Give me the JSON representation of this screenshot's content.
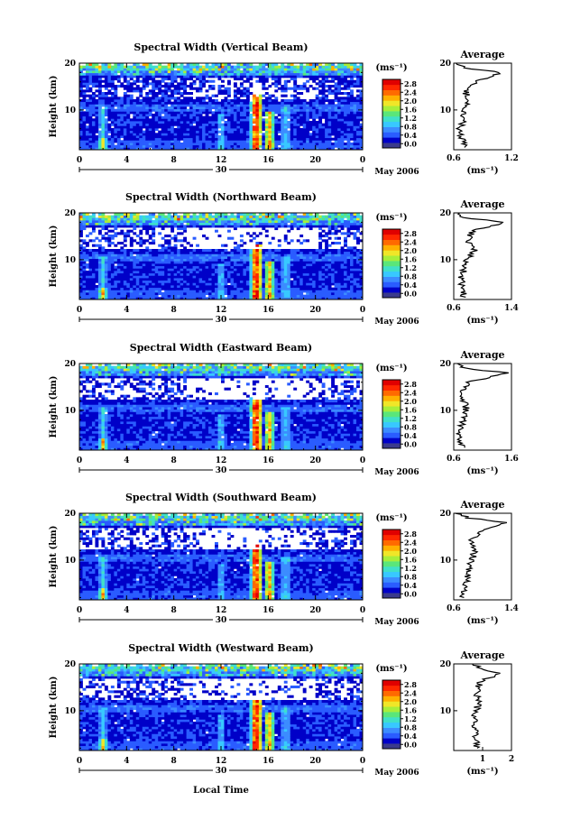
{
  "figure": {
    "xlabel": "Local Time",
    "month_label": "May 2006",
    "day_label": "30",
    "avg_title": "Average"
  },
  "colorscale": {
    "unit_label": "(ms⁻¹)",
    "ticks": [
      "0.0",
      "0.4",
      "0.8",
      "1.2",
      "1.6",
      "2.0",
      "2.4",
      "2.8"
    ],
    "colors": [
      "#3a3a8c",
      "#0000c8",
      "#2a5cff",
      "#3c8cff",
      "#38c8ff",
      "#40e0c8",
      "#5ae67a",
      "#a8ee3a",
      "#f0e628",
      "#ffb000",
      "#ff6a00",
      "#ff2800",
      "#e00000"
    ]
  },
  "chart_data": [
    {
      "type": "heatmap",
      "title": "Spectral Width (Vertical Beam)",
      "ylabel": "Height (km)",
      "xlim": [
        0,
        24
      ],
      "ylim": [
        1.5,
        20
      ],
      "xticks": [
        "0",
        "4",
        "8",
        "12",
        "16",
        "20",
        "0"
      ],
      "yticks": [
        "10",
        "20"
      ],
      "colorbar_range": [
        0.0,
        2.8
      ],
      "average_profile": {
        "title": "Average",
        "xlabel": "(ms⁻¹)",
        "xlim": [
          0.6,
          1.2
        ],
        "xticks": [
          "0.6",
          "1.2"
        ],
        "height": [
          2,
          4,
          6,
          8,
          10,
          12,
          14,
          16,
          17,
          18,
          19,
          20
        ],
        "value": [
          0.72,
          0.68,
          0.66,
          0.7,
          0.69,
          0.75,
          0.72,
          0.82,
          0.95,
          1.1,
          0.72,
          0.62
        ]
      }
    },
    {
      "type": "heatmap",
      "title": "Spectral Width (Northward Beam)",
      "ylabel": "Height (km)",
      "xlim": [
        0,
        24
      ],
      "ylim": [
        1.5,
        20
      ],
      "xticks": [
        "0",
        "4",
        "8",
        "12",
        "16",
        "20",
        "0"
      ],
      "yticks": [
        "10",
        "20"
      ],
      "colorbar_range": [
        0.0,
        2.8
      ],
      "average_profile": {
        "title": "Average",
        "xlabel": "(ms⁻¹)",
        "xlim": [
          0.6,
          1.4
        ],
        "xticks": [
          "0.6",
          "1.4"
        ],
        "height": [
          2,
          4,
          6,
          8,
          10,
          12,
          14,
          16,
          17,
          18,
          19,
          20
        ],
        "value": [
          0.74,
          0.72,
          0.7,
          0.75,
          0.78,
          0.9,
          0.8,
          0.85,
          1.05,
          1.3,
          0.75,
          0.64
        ]
      }
    },
    {
      "type": "heatmap",
      "title": "Spectral Width (Eastward Beam)",
      "ylabel": "Height (km)",
      "xlim": [
        0,
        24
      ],
      "ylim": [
        1.5,
        20
      ],
      "xticks": [
        "0",
        "4",
        "8",
        "12",
        "16",
        "20",
        "0"
      ],
      "yticks": [
        "10",
        "20"
      ],
      "colorbar_range": [
        0.0,
        2.8
      ],
      "average_profile": {
        "title": "Average",
        "xlabel": "(ms⁻¹)",
        "xlim": [
          0.6,
          1.6
        ],
        "xticks": [
          "0.6",
          "1.6"
        ],
        "height": [
          2,
          4,
          6,
          8,
          10,
          12,
          14,
          16,
          17,
          18,
          19,
          20
        ],
        "value": [
          0.75,
          0.72,
          0.7,
          0.78,
          0.82,
          0.78,
          0.75,
          0.85,
          1.2,
          1.5,
          0.8,
          0.66
        ]
      }
    },
    {
      "type": "heatmap",
      "title": "Spectral Width (Southward Beam)",
      "ylabel": "Height (km)",
      "xlim": [
        0,
        24
      ],
      "ylim": [
        1.5,
        20
      ],
      "xticks": [
        "0",
        "4",
        "8",
        "12",
        "16",
        "20",
        "0"
      ],
      "yticks": [
        "10",
        "20"
      ],
      "colorbar_range": [
        0.0,
        2.8
      ],
      "average_profile": {
        "title": "Average",
        "xlabel": "(ms⁻¹)",
        "xlim": [
          0.6,
          1.4
        ],
        "xticks": [
          "0.6",
          "1.4"
        ],
        "height": [
          2,
          4,
          6,
          8,
          10,
          12,
          14,
          16,
          17,
          18,
          19,
          20
        ],
        "value": [
          0.72,
          0.75,
          0.78,
          0.8,
          0.85,
          0.9,
          0.82,
          0.95,
          1.15,
          1.35,
          0.8,
          0.66
        ]
      }
    },
    {
      "type": "heatmap",
      "title": "Spectral Width (Westward Beam)",
      "ylabel": "Height (km)",
      "xlim": [
        0,
        24
      ],
      "ylim": [
        1.5,
        20
      ],
      "xticks": [
        "0",
        "4",
        "8",
        "12",
        "16",
        "20",
        "0"
      ],
      "yticks": [
        "10",
        "20"
      ],
      "colorbar_range": [
        0.0,
        2.8
      ],
      "average_profile": {
        "title": "Average",
        "xlabel": "(ms⁻¹)",
        "xlim": [
          0,
          2
        ],
        "xticks": [
          "1",
          "2"
        ],
        "height": [
          2,
          4,
          6,
          8,
          10,
          12,
          14,
          16,
          17,
          18,
          19,
          20
        ],
        "value": [
          0.8,
          0.75,
          0.72,
          0.7,
          0.78,
          0.85,
          0.8,
          0.9,
          1.2,
          1.7,
          0.9,
          0.75
        ]
      }
    }
  ]
}
